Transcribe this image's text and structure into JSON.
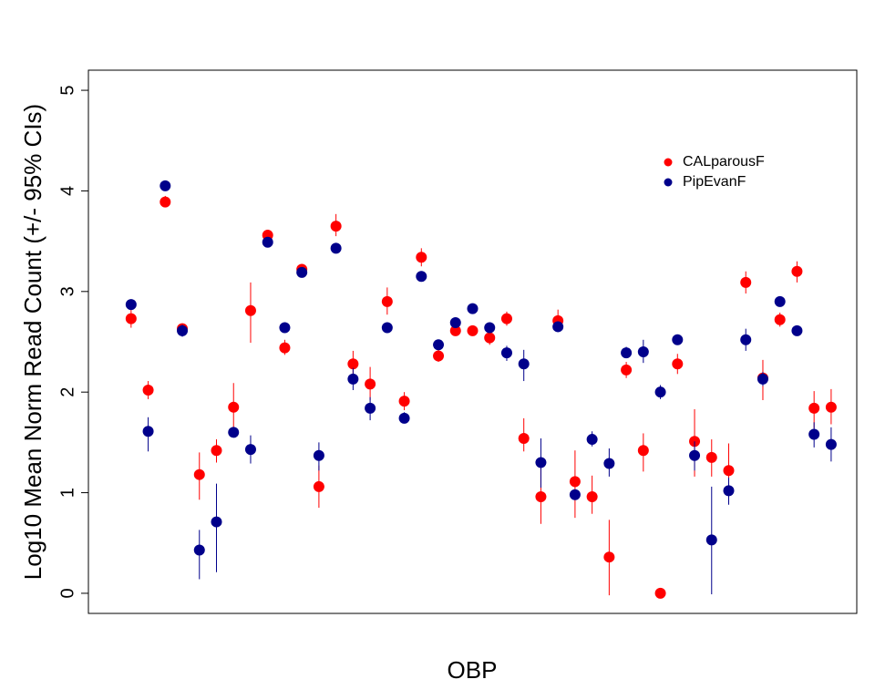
{
  "chart_data": {
    "type": "scatter",
    "title": "",
    "xlabel": "OBP",
    "ylabel": "Log10 Mean Norm Read Count (+/- 95% CIs)",
    "ylim": [
      -0.2,
      5.2
    ],
    "xlim": [
      0,
      45
    ],
    "yticks": [
      0,
      1,
      2,
      3,
      4,
      5
    ],
    "grid": false,
    "x_axis_ticks": false,
    "legend": {
      "position": "top-right"
    },
    "series": [
      {
        "name": "CALparousF",
        "color": "#ff0000",
        "x": [
          2.5,
          3.5,
          4.5,
          5.5,
          6.5,
          7.5,
          8.5,
          9.5,
          10.5,
          11.5,
          12.5,
          13.5,
          14.5,
          15.5,
          16.5,
          17.5,
          18.5,
          19.5,
          20.5,
          21.5,
          22.5,
          23.5,
          24.5,
          25.5,
          26.5,
          27.5,
          28.5,
          29.5,
          30.5,
          31.5,
          32.5,
          33.5,
          34.5,
          35.5,
          36.5,
          37.5,
          38.5,
          39.5,
          40.5,
          41.5,
          42.5,
          43.5
        ],
        "y": [
          2.73,
          2.02,
          3.89,
          2.63,
          1.18,
          1.42,
          1.85,
          2.81,
          3.56,
          2.44,
          3.22,
          1.06,
          3.65,
          2.28,
          2.08,
          2.9,
          1.91,
          3.34,
          2.36,
          2.61,
          2.61,
          2.54,
          2.73,
          1.54,
          0.96,
          2.71,
          1.11,
          0.96,
          0.36,
          2.22,
          1.42,
          0.0,
          2.28,
          1.51,
          1.35,
          1.22,
          3.09,
          2.14,
          2.72,
          3.2,
          1.84,
          1.85
        ],
        "ci_low": [
          2.64,
          1.93,
          3.85,
          2.58,
          0.93,
          1.3,
          1.65,
          2.49,
          3.52,
          2.37,
          3.17,
          0.85,
          3.55,
          2.16,
          1.92,
          2.77,
          1.82,
          3.25,
          2.3,
          2.56,
          2.56,
          2.47,
          2.66,
          1.41,
          0.69,
          2.6,
          0.75,
          0.79,
          -0.02,
          2.14,
          1.21,
          0.0,
          2.18,
          1.16,
          1.16,
          0.97,
          2.98,
          1.92,
          2.65,
          3.09,
          1.64,
          1.68
        ],
        "ci_high": [
          2.82,
          2.11,
          3.95,
          2.68,
          1.4,
          1.53,
          2.09,
          3.09,
          3.6,
          2.52,
          3.27,
          1.27,
          3.77,
          2.41,
          2.25,
          3.04,
          2.0,
          3.43,
          2.42,
          2.66,
          2.66,
          2.6,
          2.8,
          1.74,
          1.26,
          2.82,
          1.42,
          1.17,
          0.73,
          2.3,
          1.59,
          0.0,
          2.38,
          1.83,
          1.53,
          1.49,
          3.2,
          2.32,
          2.79,
          3.3,
          2.01,
          2.03
        ]
      },
      {
        "name": "PipEvanF",
        "color": "#00008b",
        "x": [
          2.5,
          3.5,
          4.5,
          5.5,
          6.5,
          7.5,
          8.5,
          9.5,
          10.5,
          11.5,
          12.5,
          13.5,
          14.5,
          15.5,
          16.5,
          17.5,
          18.5,
          19.5,
          20.5,
          21.5,
          22.5,
          23.5,
          24.5,
          25.5,
          26.5,
          27.5,
          28.5,
          29.5,
          30.5,
          31.5,
          32.5,
          33.5,
          34.5,
          35.5,
          36.5,
          37.5,
          38.5,
          39.5,
          40.5,
          41.5,
          42.5,
          43.5
        ],
        "y": [
          2.87,
          1.61,
          4.05,
          2.61,
          0.43,
          0.71,
          1.6,
          1.43,
          3.49,
          2.64,
          3.19,
          1.37,
          3.43,
          2.13,
          1.84,
          2.64,
          1.74,
          3.15,
          2.47,
          2.69,
          2.83,
          2.64,
          2.39,
          2.28,
          1.3,
          2.65,
          0.98,
          1.53,
          1.29,
          2.39,
          2.4,
          2.0,
          2.52,
          1.37,
          0.53,
          1.02,
          2.52,
          2.13,
          2.9,
          2.61,
          1.58,
          1.48
        ],
        "ci_low": [
          2.82,
          1.41,
          4.01,
          2.55,
          0.14,
          0.21,
          1.55,
          1.29,
          3.44,
          2.6,
          3.14,
          1.22,
          3.38,
          2.02,
          1.72,
          2.59,
          1.69,
          3.1,
          2.42,
          2.64,
          2.79,
          2.6,
          2.31,
          2.11,
          1.05,
          2.6,
          0.93,
          1.46,
          1.16,
          2.34,
          2.29,
          1.93,
          2.47,
          1.22,
          -0.01,
          0.88,
          2.41,
          2.06,
          2.86,
          2.57,
          1.45,
          1.31
        ],
        "ci_high": [
          2.92,
          1.75,
          4.09,
          2.67,
          0.63,
          1.09,
          1.65,
          1.57,
          3.54,
          2.68,
          3.24,
          1.5,
          3.48,
          2.24,
          1.95,
          2.69,
          1.8,
          3.2,
          2.52,
          2.74,
          2.87,
          2.68,
          2.46,
          2.42,
          1.54,
          2.7,
          1.03,
          1.61,
          1.44,
          2.45,
          2.52,
          2.07,
          2.57,
          1.51,
          1.06,
          1.15,
          2.63,
          2.2,
          2.95,
          2.66,
          1.7,
          1.65
        ]
      }
    ]
  }
}
